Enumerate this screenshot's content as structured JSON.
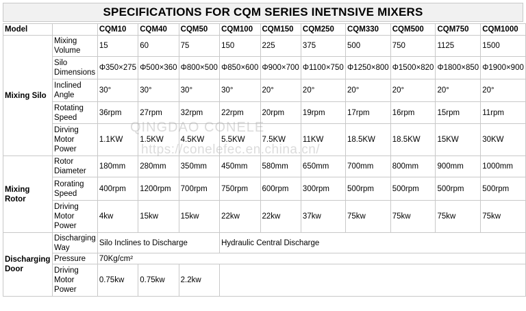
{
  "title": "SPECIFICATIONS FOR  CQM  SERIES INETNSIVE MIXERS",
  "header": {
    "label": "Model",
    "models": [
      "CQM10",
      "CQM40",
      "CQM50",
      "CQM100",
      "CQM150",
      "CQM250",
      "CQM330",
      "CQM500",
      "CQM750",
      "CQM1000"
    ]
  },
  "groups": {
    "silo": "Mixing Silo",
    "rotor": "Mixing Rotor",
    "door": "Discharging Door"
  },
  "rows": {
    "mixing_volume": {
      "label": "Mixing Volume",
      "values": [
        "15",
        "60",
        "75",
        "150",
        "225",
        "375",
        "500",
        "750",
        "1125",
        "1500"
      ]
    },
    "silo_dimensions": {
      "label": "Silo Dimensions",
      "values": [
        "Φ350×275",
        "Φ500×360",
        "Φ800×500",
        "Φ850×600",
        "Φ900×700",
        "Φ1100×750",
        "Φ1250×800",
        "Φ1500×820",
        "Φ1800×850",
        "Φ1900×900"
      ]
    },
    "inclined_angle": {
      "label": "Inclined Angle",
      "values": [
        "30°",
        "30°",
        "30°",
        "30°",
        "20°",
        "20°",
        "20°",
        "20°",
        "20°",
        "20°"
      ]
    },
    "rotating_speed": {
      "label": "Rotating Speed",
      "values": [
        "36rpm",
        "27rpm",
        "32rpm",
        "22rpm",
        "20rpm",
        "19rpm",
        "17rpm",
        "16rpm",
        "15rpm",
        "11rpm"
      ]
    },
    "driving_motor_power_silo": {
      "label": "Dirving Motor Power",
      "values": [
        "1.1KW",
        "1.5KW",
        "4.5KW",
        "5.5KW",
        "7.5KW",
        "11KW",
        "18.5KW",
        "18.5KW",
        "15KW",
        "30KW"
      ]
    },
    "rotor_diameter": {
      "label": "Rotor Diameter",
      "values": [
        "180mm",
        "280mm",
        "350mm",
        "450mm",
        "580mm",
        "650mm",
        "700mm",
        "800mm",
        "900mm",
        "1000mm"
      ]
    },
    "rotor_speed": {
      "label": "Rorating Speed",
      "values": [
        "400rpm",
        "1200rpm",
        "700rpm",
        "750rpm",
        "600rpm",
        "300rpm",
        "500rpm",
        "500rpm",
        "500rpm",
        "500rpm"
      ]
    },
    "driving_motor_power_rotor": {
      "label": "Driving Motor Power",
      "values": [
        "4kw",
        "15kw",
        "15kw",
        "22kw",
        "22kw",
        "37kw",
        "75kw",
        "75kw",
        "75kw",
        "75kw"
      ]
    },
    "discharging_way": {
      "label": "Discharging Way",
      "left": "Silo Inclines to Discharge",
      "right": "Hydraulic Central Discharge"
    },
    "pressure": {
      "label": "Pressure",
      "value": "70Kg/cm²"
    },
    "driving_motor_power_door": {
      "label": "Driving Motor Power",
      "values": [
        "0.75kw",
        "0.75kw",
        "2.2kw"
      ]
    }
  },
  "watermark": {
    "line1": "QINGDAO CONELE",
    "line2": "https://conelefec.en.china.cn/"
  }
}
